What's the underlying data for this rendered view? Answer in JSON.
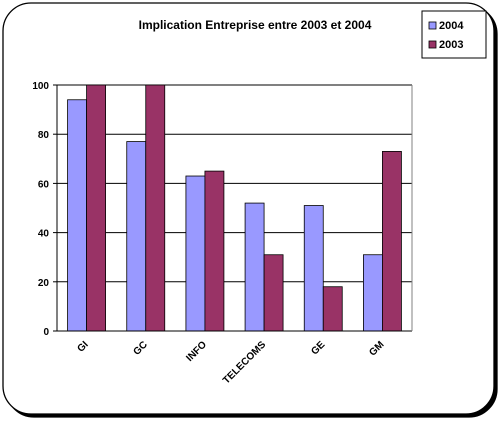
{
  "chart_data": {
    "type": "bar",
    "title": "Implication Entreprise entre 2003 et 2004",
    "categories": [
      "GI",
      "GC",
      "INFO",
      "TELECOMS",
      "GE",
      "GM"
    ],
    "series": [
      {
        "name": "2004",
        "values": [
          94,
          77,
          63,
          52,
          51,
          31
        ],
        "color": "#9999ff"
      },
      {
        "name": "2003",
        "values": [
          100,
          100,
          65,
          31,
          18,
          73
        ],
        "color": "#993366"
      }
    ],
    "ylim": [
      0,
      100
    ],
    "yticks": [
      0,
      20,
      40,
      60,
      80,
      100
    ],
    "grid": true,
    "legend_position": "top-right",
    "plot_background": "#ffffff",
    "gridline_color": "#000000"
  }
}
